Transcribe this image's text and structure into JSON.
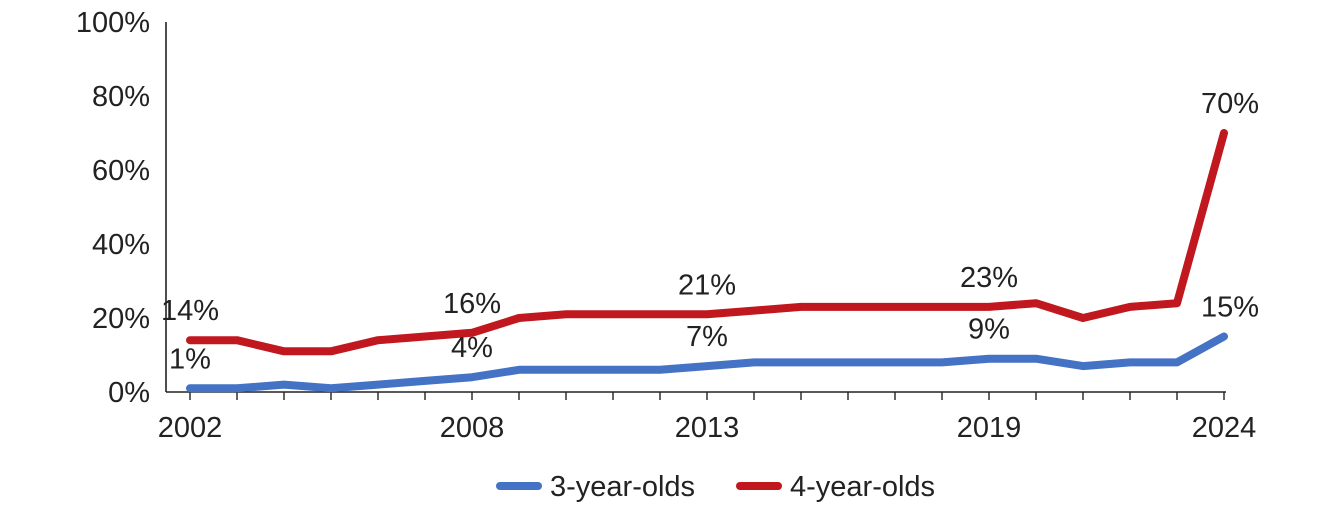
{
  "chart_data": {
    "type": "line",
    "x": [
      2002,
      2003,
      2004,
      2005,
      2006,
      2007,
      2008,
      2009,
      2010,
      2011,
      2012,
      2013,
      2014,
      2015,
      2016,
      2017,
      2018,
      2019,
      2020,
      2021,
      2022,
      2023,
      2024
    ],
    "x_tick_labels": [
      "2002",
      "2008",
      "2013",
      "2019",
      "2024"
    ],
    "ylim": [
      0,
      100
    ],
    "y_ticks": [
      0,
      20,
      40,
      60,
      80,
      100
    ],
    "y_tick_labels": [
      "0%",
      "20%",
      "40%",
      "60%",
      "80%",
      "100%"
    ],
    "grid": false,
    "legend_position": "bottom",
    "series": [
      {
        "name": "3-year-olds",
        "color": "#4472C4",
        "values": [
          1,
          1,
          2,
          1,
          2,
          3,
          4,
          6,
          6,
          6,
          6,
          7,
          8,
          8,
          8,
          8,
          8,
          9,
          9,
          7,
          8,
          8,
          15
        ],
        "labels": [
          {
            "x": 2002,
            "text": "1%"
          },
          {
            "x": 2008,
            "text": "4%"
          },
          {
            "x": 2013,
            "text": "7%"
          },
          {
            "x": 2019,
            "text": "9%"
          },
          {
            "x": 2024,
            "text": "15%"
          }
        ]
      },
      {
        "name": "4-year-olds",
        "color": "#C0181E",
        "values": [
          14,
          14,
          11,
          11,
          14,
          15,
          16,
          20,
          21,
          21,
          21,
          21,
          22,
          23,
          23,
          23,
          23,
          23,
          24,
          20,
          23,
          24,
          70
        ],
        "labels": [
          {
            "x": 2002,
            "text": "14%"
          },
          {
            "x": 2008,
            "text": "16%"
          },
          {
            "x": 2013,
            "text": "21%"
          },
          {
            "x": 2019,
            "text": "23%"
          },
          {
            "x": 2024,
            "text": "70%"
          }
        ]
      }
    ]
  }
}
